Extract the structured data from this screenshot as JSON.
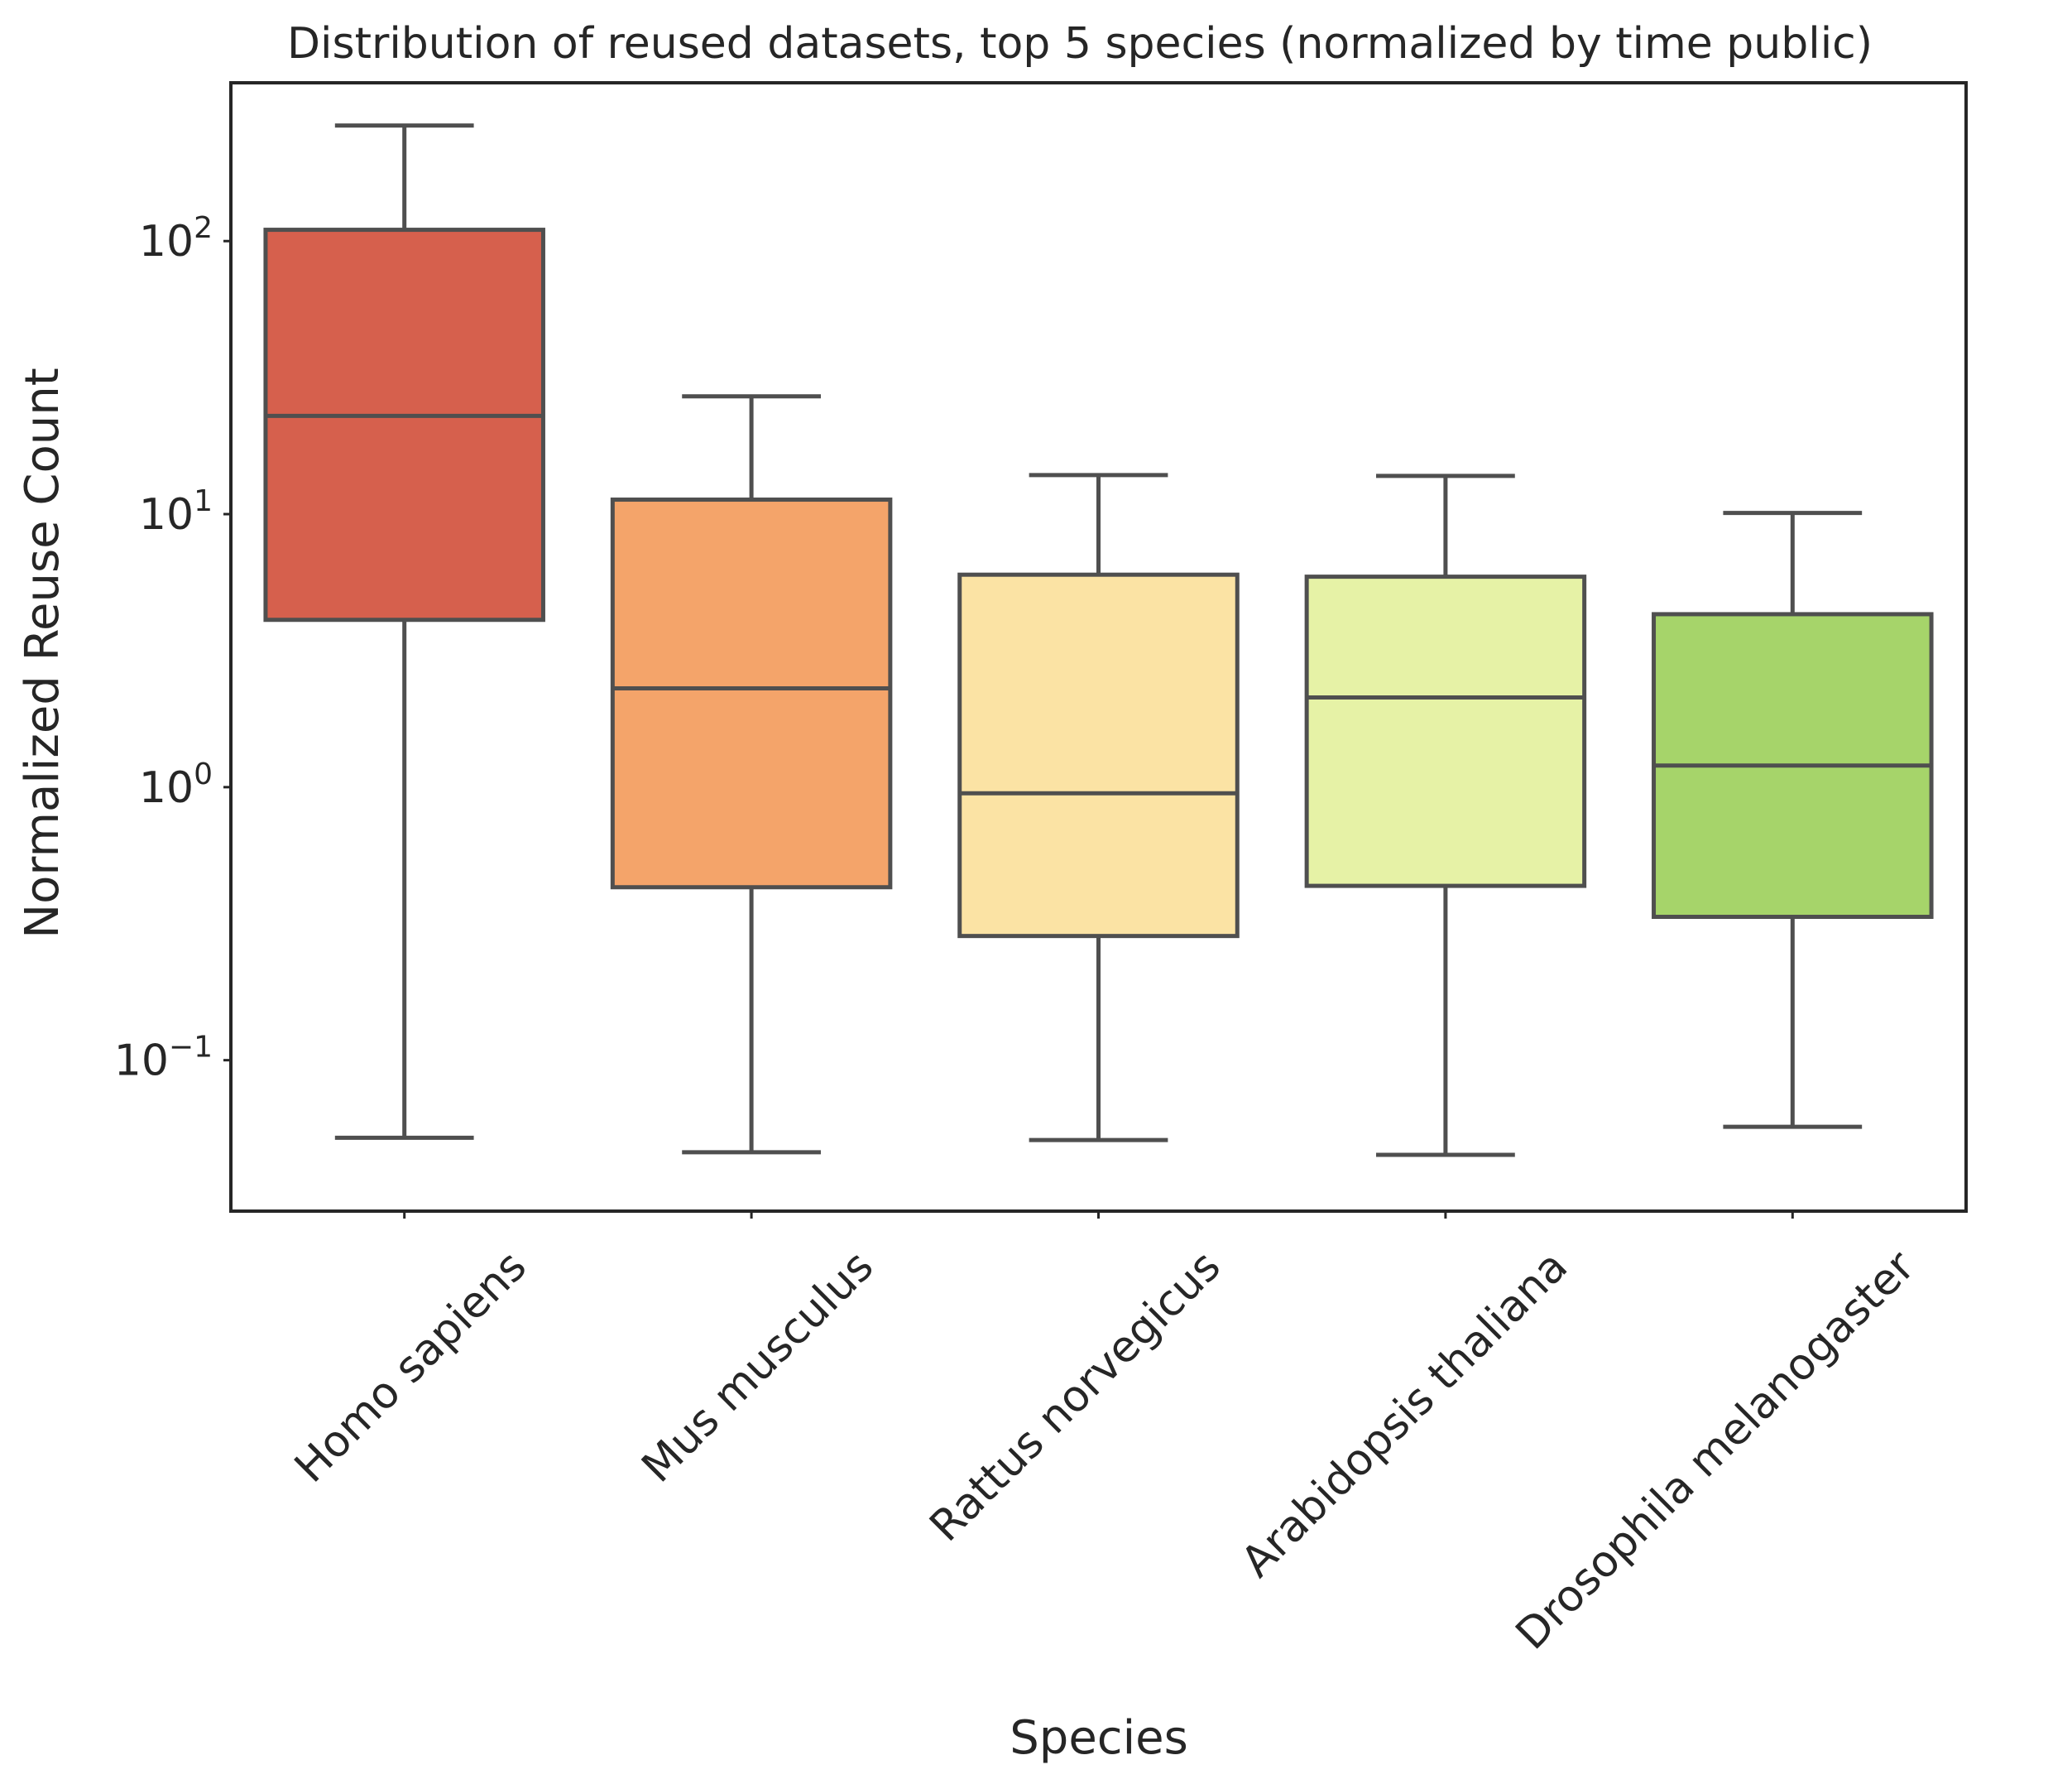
{
  "chart_data": {
    "type": "box",
    "title": "Distribution of reused datasets, top 5 species (normalized by time public)",
    "xlabel": "Species",
    "ylabel": "Normalized Reuse Count",
    "yscale": "log",
    "ylim": [
      0.028,
      380
    ],
    "yticks": [
      0.1,
      1,
      10,
      100
    ],
    "ytick_labels": [
      {
        "base": "10",
        "exp": "−1"
      },
      {
        "base": "10",
        "exp": "0"
      },
      {
        "base": "10",
        "exp": "1"
      },
      {
        "base": "10",
        "exp": "2"
      }
    ],
    "categories": [
      "Homo sapiens",
      "Mus musculus",
      "Rattus norvegicus",
      "Arabidopsis thaliana",
      "Drosophila melanogaster"
    ],
    "boxes": [
      {
        "whisker_low": 0.052,
        "q1": 4.1,
        "median": 22.9,
        "q3": 110,
        "whisker_high": 265,
        "color": "#d6604d"
      },
      {
        "whisker_low": 0.046,
        "q1": 0.43,
        "median": 2.3,
        "q3": 11.3,
        "whisker_high": 27,
        "color": "#f4a46a"
      },
      {
        "whisker_low": 0.051,
        "q1": 0.285,
        "median": 0.95,
        "q3": 6.0,
        "whisker_high": 13.9,
        "color": "#fbe3a4"
      },
      {
        "whisker_low": 0.045,
        "q1": 0.435,
        "median": 2.13,
        "q3": 5.9,
        "whisker_high": 13.8,
        "color": "#e6f2a6"
      },
      {
        "whisker_low": 0.057,
        "q1": 0.335,
        "median": 1.2,
        "q3": 4.3,
        "whisker_high": 10.1,
        "color": "#a6d46a"
      }
    ],
    "grid": false,
    "legend": "none"
  }
}
